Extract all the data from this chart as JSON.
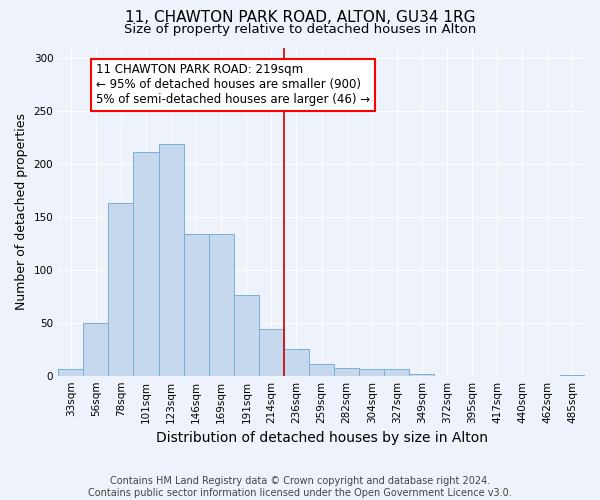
{
  "title1": "11, CHAWTON PARK ROAD, ALTON, GU34 1RG",
  "title2": "Size of property relative to detached houses in Alton",
  "xlabel": "Distribution of detached houses by size in Alton",
  "ylabel": "Number of detached properties",
  "footnote": "Contains HM Land Registry data © Crown copyright and database right 2024.\nContains public sector information licensed under the Open Government Licence v3.0.",
  "bin_labels": [
    "33sqm",
    "56sqm",
    "78sqm",
    "101sqm",
    "123sqm",
    "146sqm",
    "169sqm",
    "191sqm",
    "214sqm",
    "236sqm",
    "259sqm",
    "282sqm",
    "304sqm",
    "327sqm",
    "349sqm",
    "372sqm",
    "395sqm",
    "417sqm",
    "440sqm",
    "462sqm",
    "485sqm"
  ],
  "bar_values": [
    6,
    50,
    163,
    211,
    219,
    134,
    134,
    76,
    44,
    25,
    11,
    7,
    6,
    6,
    2,
    0,
    0,
    0,
    0,
    0,
    1
  ],
  "bar_color": "#c5d8ed",
  "bar_edge_color": "#7aafd4",
  "vline_x_index": 8,
  "vline_color": "#cc0000",
  "annotation_text": "11 CHAWTON PARK ROAD: 219sqm\n← 95% of detached houses are smaller (900)\n5% of semi-detached houses are larger (46) →",
  "ylim": [
    0,
    310
  ],
  "background_color": "#eef2fa",
  "axes_background": "#eef2fa",
  "grid_color": "#ffffff",
  "title1_fontsize": 11,
  "title2_fontsize": 9.5,
  "xlabel_fontsize": 10,
  "ylabel_fontsize": 9,
  "tick_fontsize": 7.5,
  "annotation_fontsize": 8.5,
  "footnote_fontsize": 7
}
